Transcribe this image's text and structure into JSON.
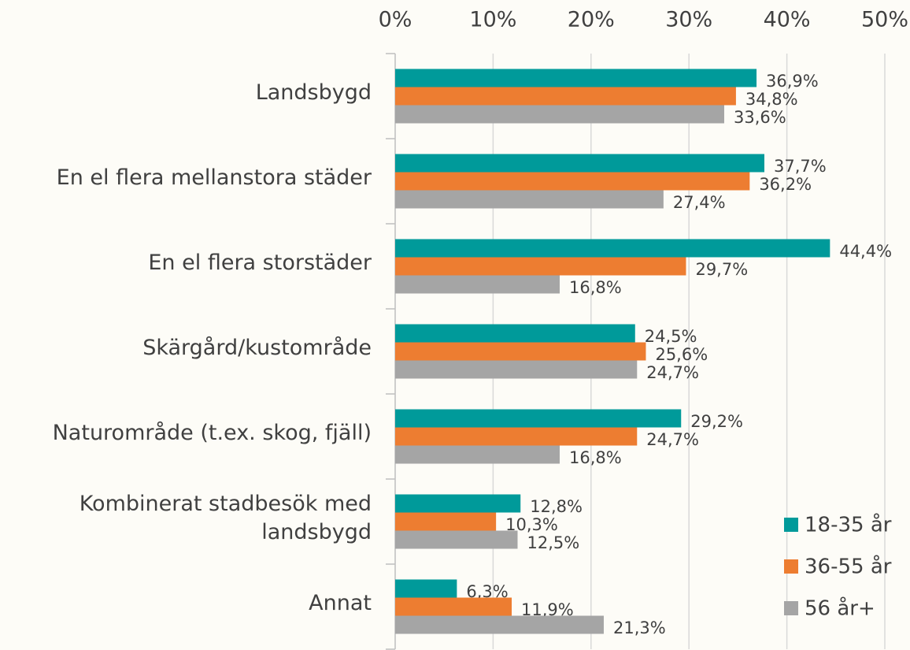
{
  "chart_data": {
    "type": "hbar",
    "categories": [
      "Landsbygd",
      "En el flera mellanstora städer",
      "En el flera storstäder",
      "Skärgård/kustområde",
      "Naturområde (t.ex. skog, fjäll)",
      "Kombinerat stadbesök med landsbygd",
      "Annat"
    ],
    "series": [
      {
        "name": "18-35 år",
        "color": "#009a9a",
        "values": [
          36.9,
          37.7,
          44.4,
          24.5,
          29.2,
          12.8,
          6.3
        ],
        "value_labels": [
          "36,9%",
          "37,7%",
          "44,4%",
          "24,5%",
          "29,2%",
          "12,8%",
          "6,3%"
        ]
      },
      {
        "name": "36-55 år",
        "color": "#ed7d31",
        "values": [
          34.8,
          36.2,
          29.7,
          25.6,
          24.7,
          10.3,
          11.9
        ],
        "value_labels": [
          "34,8%",
          "36,2%",
          "29,7%",
          "25,6%",
          "24,7%",
          "10,3%",
          "11,9%"
        ]
      },
      {
        "name": "56 år+",
        "color": "#a5a5a5",
        "values": [
          33.6,
          27.4,
          16.8,
          24.7,
          16.8,
          12.5,
          21.3
        ],
        "value_labels": [
          "33,6%",
          "27,4%",
          "16,8%",
          "24,7%",
          "16,8%",
          "12,5%",
          "21,3%"
        ]
      }
    ],
    "xlim": [
      0,
      50
    ],
    "xticks": [
      {
        "value": 0,
        "label": "0%"
      },
      {
        "value": 10,
        "label": "10%"
      },
      {
        "value": 20,
        "label": "20%"
      },
      {
        "value": 30,
        "label": "30%"
      },
      {
        "value": 40,
        "label": "40%"
      },
      {
        "value": 50,
        "label": "50%"
      }
    ],
    "grid": true,
    "legend": "lower right"
  }
}
